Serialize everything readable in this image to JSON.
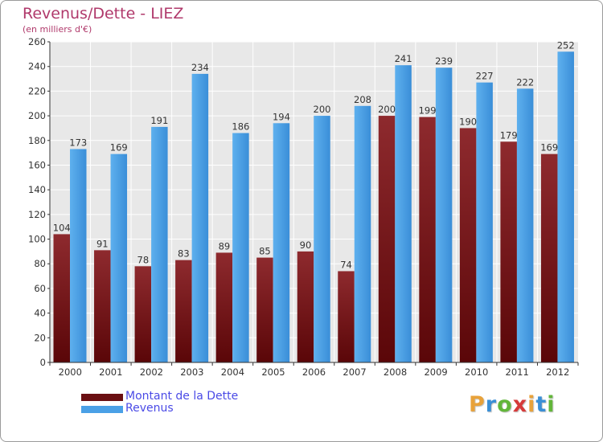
{
  "title": "Revenus/Dette - LIEZ",
  "subtitle": "(en milliers d'€)",
  "colors": {
    "debt": "#7a1a1e",
    "revenue": "#4aa0e6",
    "title": "#b0396b",
    "legend_text": "#4a4ae6"
  },
  "logo": {
    "letters": [
      "P",
      "r",
      "o",
      "x",
      "i",
      "t",
      "i"
    ],
    "colors": [
      "#e8a23a",
      "#3a8fd6",
      "#62b63a",
      "#d63a3a",
      "#e8a23a",
      "#3a8fd6",
      "#62b63a"
    ]
  },
  "chart_data": {
    "type": "bar",
    "categories": [
      "2000",
      "2001",
      "2002",
      "2003",
      "2004",
      "2005",
      "2006",
      "2007",
      "2008",
      "2009",
      "2010",
      "2011",
      "2012"
    ],
    "series": [
      {
        "name": "Montant de la Dette",
        "values": [
          104,
          91,
          78,
          83,
          89,
          85,
          90,
          74,
          200,
          199,
          190,
          179,
          169
        ]
      },
      {
        "name": "Revenus",
        "values": [
          173,
          169,
          191,
          234,
          186,
          194,
          200,
          208,
          241,
          239,
          227,
          222,
          252
        ]
      }
    ],
    "yticks": [
      0,
      20,
      40,
      60,
      80,
      100,
      120,
      140,
      160,
      180,
      200,
      220,
      240,
      260
    ],
    "ylim": [
      0,
      260
    ],
    "grid": true,
    "legend_position": "bottom-left"
  }
}
